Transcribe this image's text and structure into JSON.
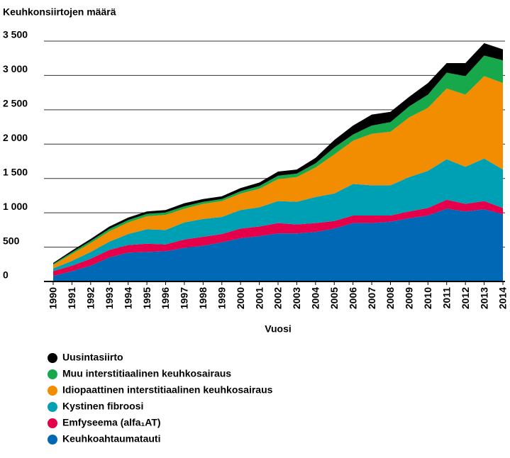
{
  "chart_data": {
    "type": "stacked_area",
    "ylabel": "Keuhkonsiirtojen määrä",
    "xlabel": "Vuosi",
    "categories": [
      "1990",
      "1991",
      "1992",
      "1993",
      "1994",
      "1995",
      "1996",
      "1997",
      "1998",
      "1999",
      "2000",
      "2001",
      "2002",
      "2003",
      "2004",
      "2005",
      "2006",
      "2007",
      "2008",
      "2009",
      "2010",
      "2011",
      "2012",
      "2013",
      "2014"
    ],
    "ylim": [
      0,
      3500
    ],
    "yticks": [
      0,
      500,
      {
        "value": 1000,
        "label": "1 000"
      },
      {
        "value": 1500,
        "label": "1 500"
      },
      {
        "value": 2000,
        "label": "2 000"
      },
      {
        "value": 2500,
        "label": "2 500"
      },
      {
        "value": 3000,
        "label": "3 000"
      },
      {
        "value": 3500,
        "label": "3 500"
      }
    ],
    "grid": true,
    "series": [
      {
        "name": "Keuhkoahtaumatauti",
        "color": "#0068b4",
        "values": [
          80,
          150,
          230,
          350,
          420,
          430,
          440,
          490,
          520,
          570,
          630,
          660,
          700,
          700,
          720,
          770,
          850,
          850,
          870,
          920,
          960,
          1060,
          1020,
          1050,
          980
        ]
      },
      {
        "name": "Emfyseema (alfa₁AT)",
        "color": "#e4004b",
        "values": [
          70,
          80,
          100,
          110,
          110,
          120,
          100,
          120,
          130,
          120,
          140,
          140,
          150,
          130,
          130,
          110,
          110,
          110,
          90,
          100,
          110,
          130,
          110,
          120,
          90
        ]
      },
      {
        "name": "Kystinen fibroosi",
        "color": "#00a0b4",
        "values": [
          40,
          70,
          100,
          120,
          160,
          210,
          210,
          250,
          260,
          250,
          270,
          280,
          320,
          330,
          380,
          400,
          460,
          440,
          440,
          500,
          540,
          590,
          540,
          620,
          560
        ]
      },
      {
        "name": "Idiopaattinen interstitiaalinen keuhkosairaus",
        "color": "#f28c00",
        "values": [
          50,
          100,
          130,
          150,
          170,
          190,
          220,
          200,
          220,
          230,
          240,
          270,
          320,
          360,
          430,
          570,
          630,
          750,
          780,
          870,
          920,
          1030,
          1050,
          1200,
          1260
        ]
      },
      {
        "name": "Muu interstitiaalinen keuhkosairaus",
        "color": "#17a84b",
        "values": [
          15,
          25,
          30,
          35,
          35,
          35,
          35,
          35,
          30,
          30,
          35,
          40,
          50,
          50,
          60,
          100,
          90,
          120,
          140,
          160,
          190,
          230,
          270,
          300,
          330
        ]
      },
      {
        "name": "Uusintasiirto",
        "color": "#000000",
        "values": [
          15,
          25,
          30,
          35,
          35,
          35,
          35,
          45,
          40,
          40,
          45,
          50,
          60,
          60,
          80,
          110,
          130,
          160,
          150,
          140,
          170,
          140,
          190,
          180,
          160
        ]
      }
    ]
  }
}
